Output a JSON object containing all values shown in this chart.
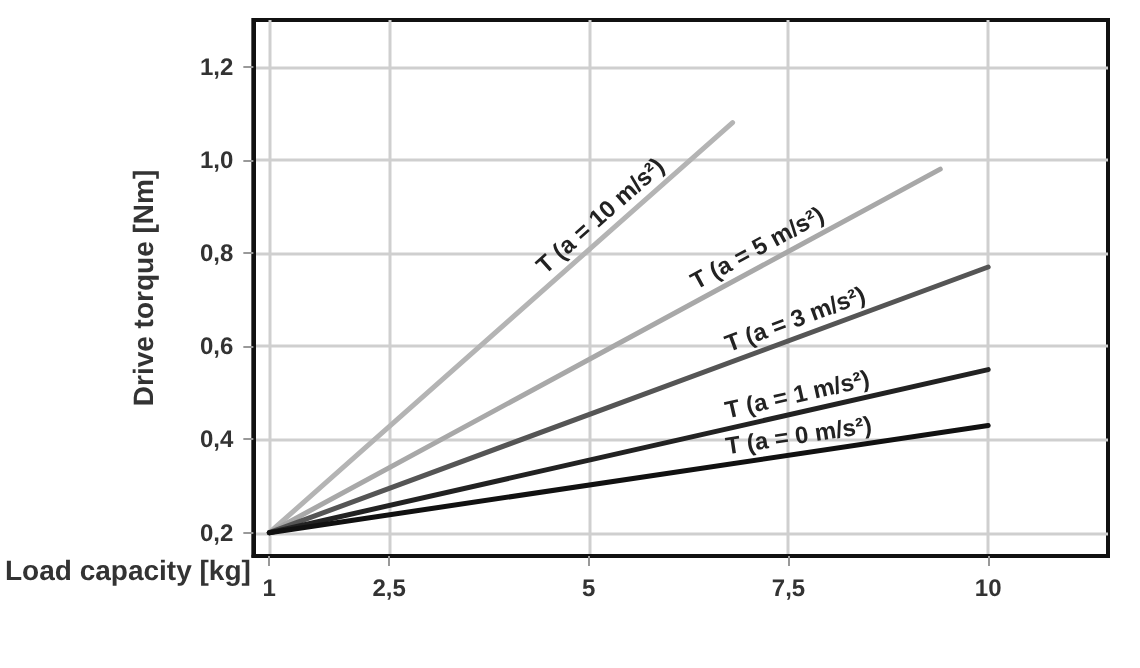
{
  "chart_data": {
    "type": "line",
    "xlabel": "Load capacity [kg]",
    "ylabel": "Drive torque [Nm]",
    "xlim": [
      0.8,
      11.5
    ],
    "xticks": [
      1,
      {
        "value": 2.5,
        "label": "2,5"
      },
      5,
      {
        "value": 7.5,
        "label": "7,5"
      },
      10
    ],
    "ylim": [
      0.15,
      1.3
    ],
    "yticks": [
      {
        "value": 0.2,
        "label": "0,2"
      },
      {
        "value": 0.4,
        "label": "0,4"
      },
      {
        "value": 0.6,
        "label": "0,6"
      },
      {
        "value": 0.8,
        "label": "0,8"
      },
      {
        "value": 1.0,
        "label": "1,0"
      },
      {
        "value": 1.2,
        "label": "1,2"
      }
    ],
    "grid": true,
    "marker": "none",
    "line_style": "solid",
    "series": [
      {
        "name": "T (a = 10 m/s²)",
        "color": "#b4b4b4",
        "x": [
          1,
          6.8
        ],
        "values": [
          0.2,
          1.08
        ]
      },
      {
        "name": "T (a = 5 m/s²)",
        "color": "#a8a8a8",
        "x": [
          1,
          9.4
        ],
        "values": [
          0.2,
          0.98
        ]
      },
      {
        "name": "T (a = 3 m/s²)",
        "color": "#555555",
        "x": [
          1,
          10
        ],
        "values": [
          0.2,
          0.77
        ]
      },
      {
        "name": "T (a = 1 m/s²)",
        "color": "#222222",
        "x": [
          1,
          10
        ],
        "values": [
          0.2,
          0.55
        ]
      },
      {
        "name": "T (a = 0 m/s²)",
        "color": "#111111",
        "x": [
          1,
          10
        ],
        "values": [
          0.2,
          0.43
        ]
      }
    ]
  }
}
